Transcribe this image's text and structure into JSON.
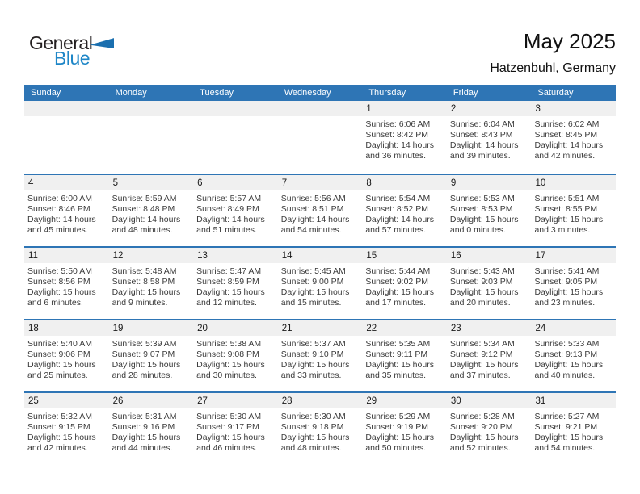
{
  "logo": {
    "general": "General",
    "blue": "Blue"
  },
  "title": "May 2025",
  "location": "Hatzenbuhl, Germany",
  "weekdays": [
    "Sunday",
    "Monday",
    "Tuesday",
    "Wednesday",
    "Thursday",
    "Friday",
    "Saturday"
  ],
  "weeks": [
    {
      "days": [
        null,
        null,
        null,
        null,
        {
          "num": "1",
          "sunrise": "Sunrise: 6:06 AM",
          "sunset": "Sunset: 8:42 PM",
          "daylight": "Daylight: 14 hours and 36 minutes."
        },
        {
          "num": "2",
          "sunrise": "Sunrise: 6:04 AM",
          "sunset": "Sunset: 8:43 PM",
          "daylight": "Daylight: 14 hours and 39 minutes."
        },
        {
          "num": "3",
          "sunrise": "Sunrise: 6:02 AM",
          "sunset": "Sunset: 8:45 PM",
          "daylight": "Daylight: 14 hours and 42 minutes."
        }
      ]
    },
    {
      "days": [
        {
          "num": "4",
          "sunrise": "Sunrise: 6:00 AM",
          "sunset": "Sunset: 8:46 PM",
          "daylight": "Daylight: 14 hours and 45 minutes."
        },
        {
          "num": "5",
          "sunrise": "Sunrise: 5:59 AM",
          "sunset": "Sunset: 8:48 PM",
          "daylight": "Daylight: 14 hours and 48 minutes."
        },
        {
          "num": "6",
          "sunrise": "Sunrise: 5:57 AM",
          "sunset": "Sunset: 8:49 PM",
          "daylight": "Daylight: 14 hours and 51 minutes."
        },
        {
          "num": "7",
          "sunrise": "Sunrise: 5:56 AM",
          "sunset": "Sunset: 8:51 PM",
          "daylight": "Daylight: 14 hours and 54 minutes."
        },
        {
          "num": "8",
          "sunrise": "Sunrise: 5:54 AM",
          "sunset": "Sunset: 8:52 PM",
          "daylight": "Daylight: 14 hours and 57 minutes."
        },
        {
          "num": "9",
          "sunrise": "Sunrise: 5:53 AM",
          "sunset": "Sunset: 8:53 PM",
          "daylight": "Daylight: 15 hours and 0 minutes."
        },
        {
          "num": "10",
          "sunrise": "Sunrise: 5:51 AM",
          "sunset": "Sunset: 8:55 PM",
          "daylight": "Daylight: 15 hours and 3 minutes."
        }
      ]
    },
    {
      "days": [
        {
          "num": "11",
          "sunrise": "Sunrise: 5:50 AM",
          "sunset": "Sunset: 8:56 PM",
          "daylight": "Daylight: 15 hours and 6 minutes."
        },
        {
          "num": "12",
          "sunrise": "Sunrise: 5:48 AM",
          "sunset": "Sunset: 8:58 PM",
          "daylight": "Daylight: 15 hours and 9 minutes."
        },
        {
          "num": "13",
          "sunrise": "Sunrise: 5:47 AM",
          "sunset": "Sunset: 8:59 PM",
          "daylight": "Daylight: 15 hours and 12 minutes."
        },
        {
          "num": "14",
          "sunrise": "Sunrise: 5:45 AM",
          "sunset": "Sunset: 9:00 PM",
          "daylight": "Daylight: 15 hours and 15 minutes."
        },
        {
          "num": "15",
          "sunrise": "Sunrise: 5:44 AM",
          "sunset": "Sunset: 9:02 PM",
          "daylight": "Daylight: 15 hours and 17 minutes."
        },
        {
          "num": "16",
          "sunrise": "Sunrise: 5:43 AM",
          "sunset": "Sunset: 9:03 PM",
          "daylight": "Daylight: 15 hours and 20 minutes."
        },
        {
          "num": "17",
          "sunrise": "Sunrise: 5:41 AM",
          "sunset": "Sunset: 9:05 PM",
          "daylight": "Daylight: 15 hours and 23 minutes."
        }
      ]
    },
    {
      "days": [
        {
          "num": "18",
          "sunrise": "Sunrise: 5:40 AM",
          "sunset": "Sunset: 9:06 PM",
          "daylight": "Daylight: 15 hours and 25 minutes."
        },
        {
          "num": "19",
          "sunrise": "Sunrise: 5:39 AM",
          "sunset": "Sunset: 9:07 PM",
          "daylight": "Daylight: 15 hours and 28 minutes."
        },
        {
          "num": "20",
          "sunrise": "Sunrise: 5:38 AM",
          "sunset": "Sunset: 9:08 PM",
          "daylight": "Daylight: 15 hours and 30 minutes."
        },
        {
          "num": "21",
          "sunrise": "Sunrise: 5:37 AM",
          "sunset": "Sunset: 9:10 PM",
          "daylight": "Daylight: 15 hours and 33 minutes."
        },
        {
          "num": "22",
          "sunrise": "Sunrise: 5:35 AM",
          "sunset": "Sunset: 9:11 PM",
          "daylight": "Daylight: 15 hours and 35 minutes."
        },
        {
          "num": "23",
          "sunrise": "Sunrise: 5:34 AM",
          "sunset": "Sunset: 9:12 PM",
          "daylight": "Daylight: 15 hours and 37 minutes."
        },
        {
          "num": "24",
          "sunrise": "Sunrise: 5:33 AM",
          "sunset": "Sunset: 9:13 PM",
          "daylight": "Daylight: 15 hours and 40 minutes."
        }
      ]
    },
    {
      "days": [
        {
          "num": "25",
          "sunrise": "Sunrise: 5:32 AM",
          "sunset": "Sunset: 9:15 PM",
          "daylight": "Daylight: 15 hours and 42 minutes."
        },
        {
          "num": "26",
          "sunrise": "Sunrise: 5:31 AM",
          "sunset": "Sunset: 9:16 PM",
          "daylight": "Daylight: 15 hours and 44 minutes."
        },
        {
          "num": "27",
          "sunrise": "Sunrise: 5:30 AM",
          "sunset": "Sunset: 9:17 PM",
          "daylight": "Daylight: 15 hours and 46 minutes."
        },
        {
          "num": "28",
          "sunrise": "Sunrise: 5:30 AM",
          "sunset": "Sunset: 9:18 PM",
          "daylight": "Daylight: 15 hours and 48 minutes."
        },
        {
          "num": "29",
          "sunrise": "Sunrise: 5:29 AM",
          "sunset": "Sunset: 9:19 PM",
          "daylight": "Daylight: 15 hours and 50 minutes."
        },
        {
          "num": "30",
          "sunrise": "Sunrise: 5:28 AM",
          "sunset": "Sunset: 9:20 PM",
          "daylight": "Daylight: 15 hours and 52 minutes."
        },
        {
          "num": "31",
          "sunrise": "Sunrise: 5:27 AM",
          "sunset": "Sunset: 9:21 PM",
          "daylight": "Daylight: 15 hours and 54 minutes."
        }
      ]
    }
  ],
  "colors": {
    "header_bg": "#2E75B5",
    "week_divider": "#2E75B5",
    "day_strip_bg": "#F0F0F0",
    "header_text": "#FFFFFF",
    "logo_general": "#231F20",
    "logo_blue": "#1E86C7",
    "logo_triangle": "#1A6FAF",
    "title_text": "#111111",
    "detail_text": "#3B3B3B",
    "day_number_text": "#1A1A1A"
  }
}
